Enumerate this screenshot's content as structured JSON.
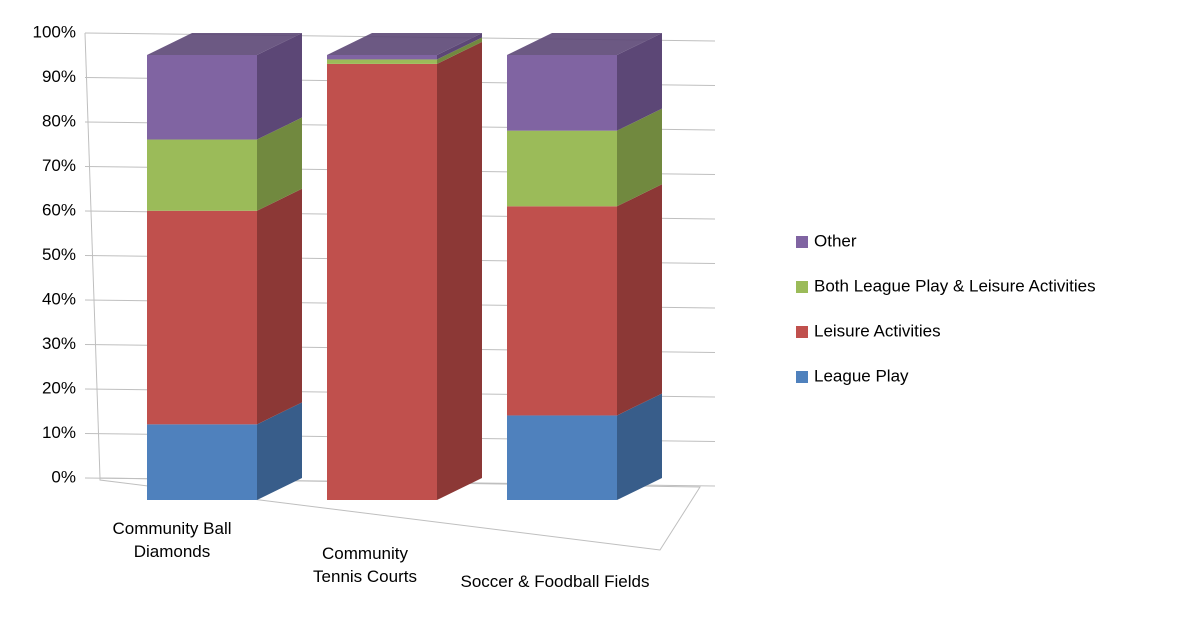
{
  "chart_data": {
    "type": "bar3d_stacked",
    "categories": [
      "Community Ball Diamonds",
      "Community Tennis Courts",
      "Soccer & Foodball Fields"
    ],
    "series": [
      {
        "name": "League Play",
        "color": "#4f81bd",
        "side": "#385d8a",
        "values": [
          17,
          0,
          19
        ]
      },
      {
        "name": "Leisure Activities",
        "color": "#c0504d",
        "side": "#8c3836",
        "values": [
          48,
          98,
          47
        ]
      },
      {
        "name": "Both League Play & Leisure Activities",
        "color": "#9bbb59",
        "side": "#71893f",
        "values": [
          16,
          1,
          17
        ]
      },
      {
        "name": "Other",
        "color": "#8064a2",
        "side": "#5c4776",
        "values": [
          19,
          1,
          17
        ]
      }
    ],
    "ylim": [
      0,
      100
    ],
    "yticks": [
      {
        "value": 0,
        "label": "0%"
      },
      {
        "value": 10,
        "label": "10%"
      },
      {
        "value": 20,
        "label": "20%"
      },
      {
        "value": 30,
        "label": "30%"
      },
      {
        "value": 40,
        "label": "40%"
      },
      {
        "value": 50,
        "label": "50%"
      },
      {
        "value": 60,
        "label": "60%"
      },
      {
        "value": 70,
        "label": "70%"
      },
      {
        "value": 80,
        "label": "80%"
      },
      {
        "value": 90,
        "label": "90%"
      },
      {
        "value": 100,
        "label": "100%"
      }
    ],
    "grid": true,
    "legend": "right"
  }
}
